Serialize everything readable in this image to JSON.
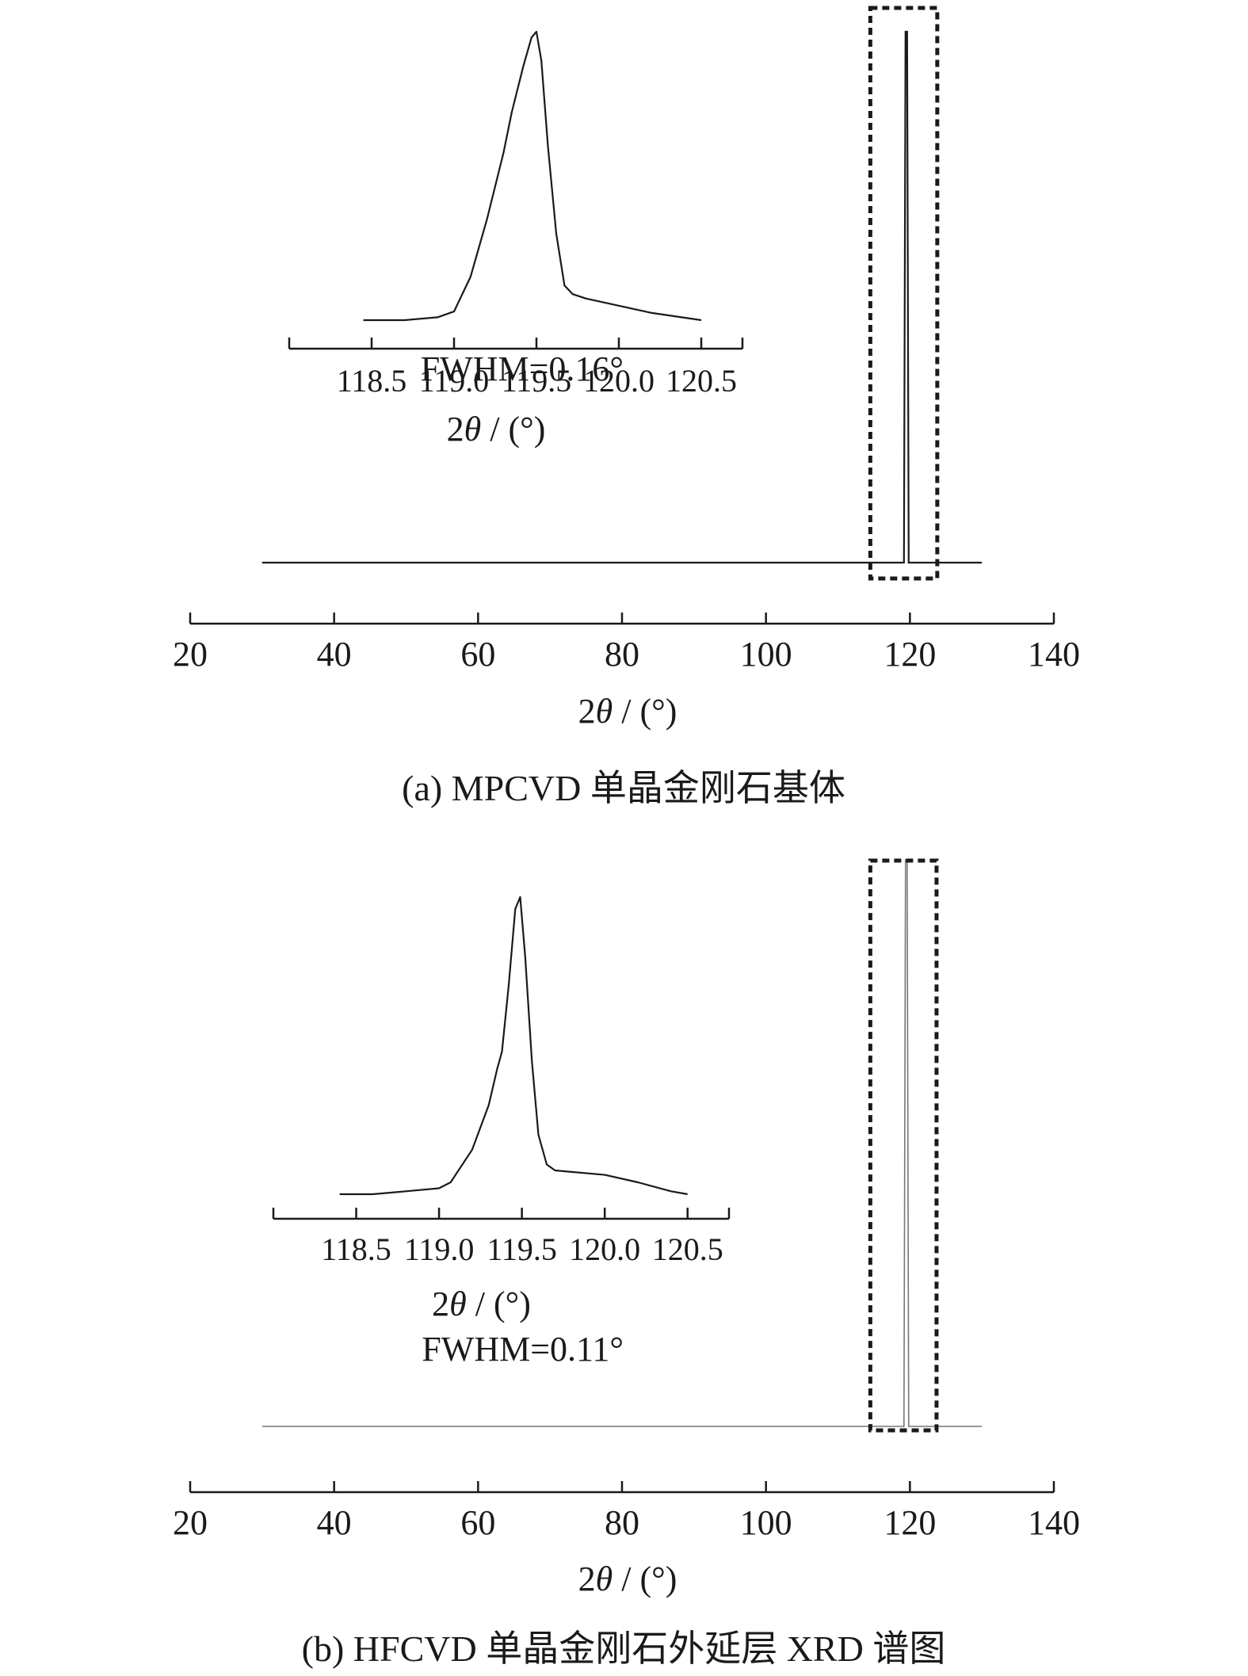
{
  "chart_data": [
    {
      "type": "line",
      "caption": "(a) MPCVD 单晶金刚石基体",
      "xlabel_prefix": "2",
      "xlabel_symbol": "θ",
      "xlabel_suffix": " / (°)",
      "xlim": [
        20,
        140
      ],
      "xticks": [
        20,
        40,
        60,
        80,
        100,
        120,
        140
      ],
      "xtick_labels": [
        "20",
        "40",
        "60",
        "80",
        "100",
        "120",
        "140"
      ],
      "x_start": 30,
      "x_end": 130,
      "peak_center": 119.5,
      "annotation": "FWHM=0.16°",
      "highlight_box_x": [
        114.5,
        123.8
      ],
      "inset": {
        "xlim": [
          118.0,
          120.75
        ],
        "xticks": [
          118.5,
          119.0,
          119.5,
          120.0,
          120.5
        ],
        "xtick_labels": [
          "118.5",
          "119.0",
          "119.5",
          "120.0",
          "120.5"
        ],
        "xlabel_prefix": "2",
        "xlabel_symbol": "θ",
        "xlabel_suffix": " / (°)",
        "x": [
          118.45,
          118.7,
          118.9,
          119.0,
          119.1,
          119.2,
          119.3,
          119.35,
          119.42,
          119.47,
          119.5,
          119.53,
          119.57,
          119.62,
          119.67,
          119.72,
          119.8,
          120.0,
          120.2,
          120.5
        ],
        "y": [
          0.0,
          0.0,
          0.01,
          0.03,
          0.15,
          0.35,
          0.58,
          0.72,
          0.88,
          0.98,
          1.0,
          0.9,
          0.6,
          0.3,
          0.12,
          0.09,
          0.075,
          0.05,
          0.025,
          0.0
        ]
      }
    },
    {
      "type": "line",
      "caption": "(b) HFCVD 单晶金刚石外延层 XRD 谱图",
      "xlabel_prefix": "2",
      "xlabel_symbol": "θ",
      "xlabel_suffix": " / (°)",
      "xlim": [
        20,
        140
      ],
      "xticks": [
        20,
        40,
        60,
        80,
        100,
        120,
        140
      ],
      "xtick_labels": [
        "20",
        "40",
        "60",
        "80",
        "100",
        "120",
        "140"
      ],
      "x_start": 30,
      "x_end": 130,
      "peak_center": 119.5,
      "annotation": "FWHM=0.11°",
      "highlight_box_x": [
        114.5,
        123.7
      ],
      "inset": {
        "xlim": [
          118.0,
          120.75
        ],
        "xticks": [
          118.5,
          119.0,
          119.5,
          120.0,
          120.5
        ],
        "xtick_labels": [
          "118.5",
          "119.0",
          "119.5",
          "120.0",
          "120.5"
        ],
        "xlabel_prefix": "2",
        "xlabel_symbol": "θ",
        "xlabel_suffix": " / (°)",
        "x": [
          118.4,
          118.6,
          118.8,
          119.0,
          119.07,
          119.2,
          119.3,
          119.35,
          119.38,
          119.42,
          119.46,
          119.49,
          119.52,
          119.56,
          119.6,
          119.65,
          119.7,
          119.8,
          120.0,
          120.2,
          120.4,
          120.5
        ],
        "y": [
          0.0,
          0.0,
          0.01,
          0.02,
          0.04,
          0.15,
          0.3,
          0.42,
          0.48,
          0.7,
          0.96,
          1.0,
          0.8,
          0.45,
          0.2,
          0.1,
          0.08,
          0.075,
          0.065,
          0.04,
          0.01,
          0.0
        ]
      }
    }
  ]
}
